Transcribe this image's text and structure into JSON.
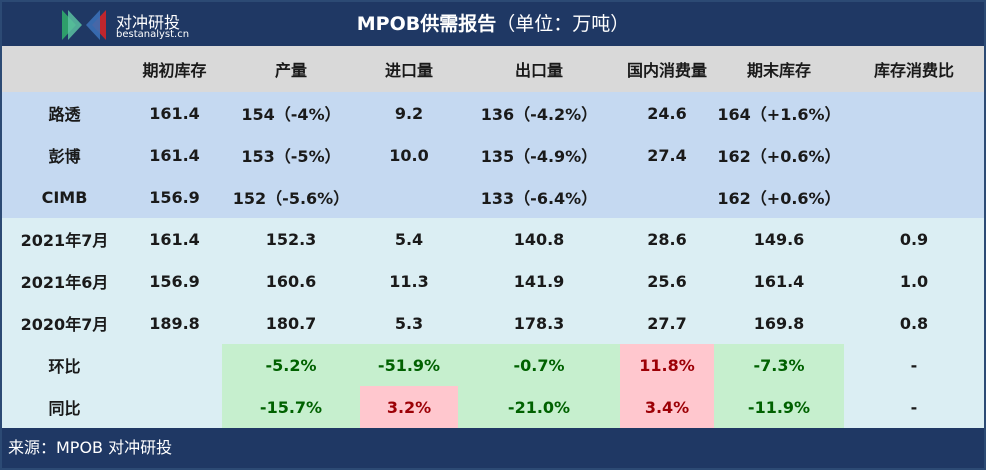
{
  "header": {
    "title": "MPOB供需报告",
    "unit": "（单位：万吨）",
    "logo_text": "对冲研投",
    "logo_site": "bestanalyst.cn"
  },
  "columns": [
    "",
    "期初库存",
    "产量",
    "进口量",
    "出口量",
    "国内消费量",
    "期末库存",
    "库存消费比"
  ],
  "rows": [
    {
      "group": "forecast",
      "cells": [
        "路透",
        "161.4",
        "154（-4%）",
        "9.2",
        "136（-4.2%）",
        "24.6",
        "164（+1.6%）",
        ""
      ]
    },
    {
      "group": "forecast",
      "cells": [
        "彭博",
        "161.4",
        "153（-5%）",
        "10.0",
        "135（-4.9%）",
        "27.4",
        "162（+0.6%）",
        ""
      ]
    },
    {
      "group": "forecast",
      "cells": [
        "CIMB",
        "156.9",
        "152（-5.6%）",
        "",
        "133（-6.4%）",
        "",
        "162（+0.6%）",
        ""
      ]
    },
    {
      "group": "actual",
      "cells": [
        "2021年7月",
        "161.4",
        "152.3",
        "5.4",
        "140.8",
        "28.6",
        "149.6",
        "0.9"
      ]
    },
    {
      "group": "actual",
      "cells": [
        "2021年6月",
        "156.9",
        "160.6",
        "11.3",
        "141.9",
        "25.6",
        "161.4",
        "1.0"
      ]
    },
    {
      "group": "actual",
      "cells": [
        "2020年7月",
        "189.8",
        "180.7",
        "5.3",
        "178.3",
        "27.7",
        "169.8",
        "0.8"
      ]
    },
    {
      "group": "change",
      "cells": [
        "环比",
        "",
        "-5.2%",
        "-51.9%",
        "-0.7%",
        "11.8%",
        "-7.3%",
        "-"
      ],
      "colors": [
        "",
        "",
        "green",
        "green",
        "green",
        "red",
        "green",
        ""
      ]
    },
    {
      "group": "change",
      "cells": [
        "同比",
        "",
        "-15.7%",
        "3.2%",
        "-21.0%",
        "3.4%",
        "-11.9%",
        "-"
      ],
      "colors": [
        "",
        "",
        "green",
        "red",
        "green",
        "red",
        "green",
        ""
      ]
    }
  ],
  "footer": {
    "source": "来源：MPOB 对冲研投"
  },
  "colors": {
    "title_bg": "#1f3864",
    "header_bg": "#d9d9d9",
    "forecast_bg": "#c5d9f1",
    "body_bg": "#dbeef3",
    "decrease_fill": "#c6efce",
    "decrease_text": "#006100",
    "increase_fill": "#ffc7ce",
    "increase_text": "#9c0006"
  }
}
